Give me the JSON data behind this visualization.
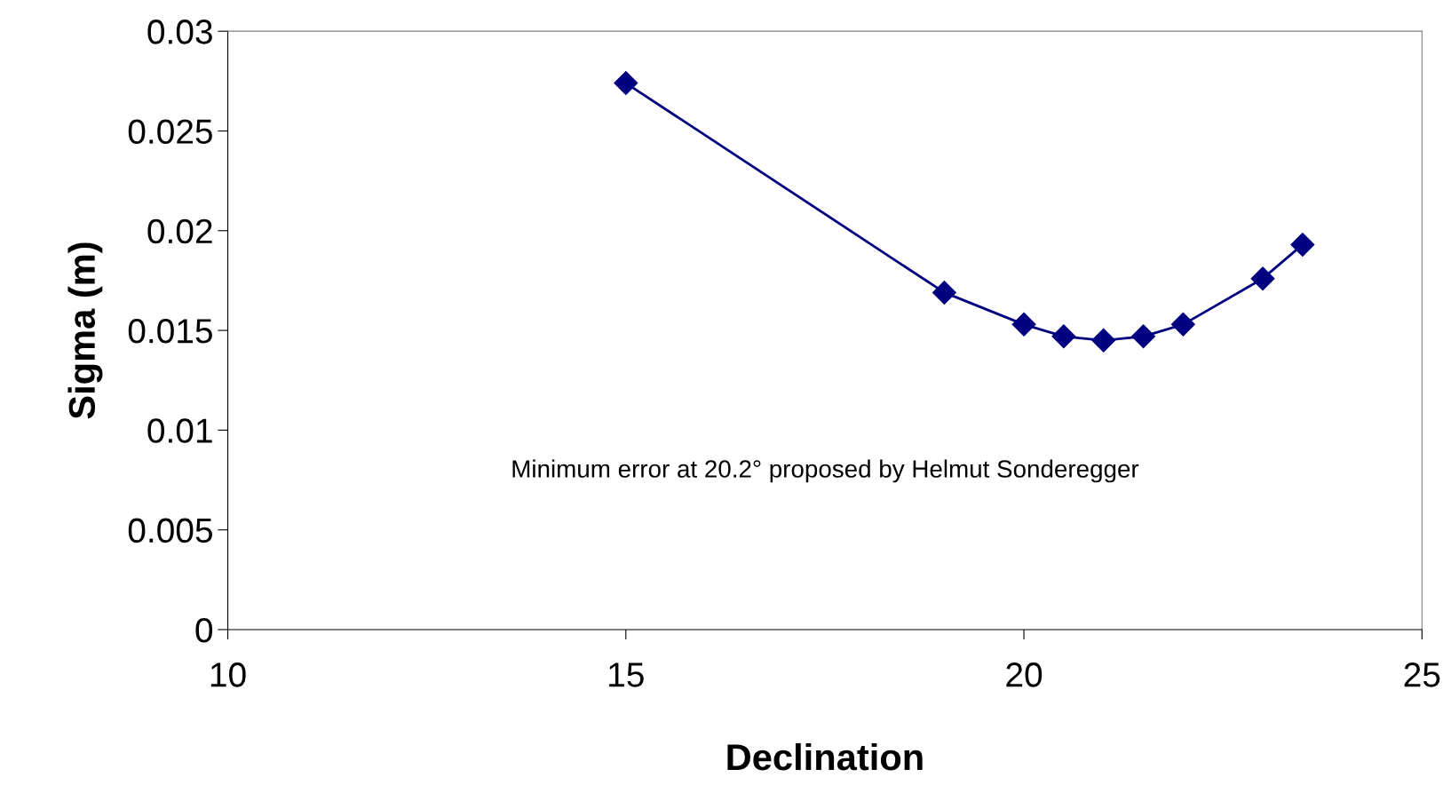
{
  "chart_data": {
    "type": "line",
    "xlabel": "Declination",
    "ylabel": "Sigma (m)",
    "x": [
      15,
      19,
      20,
      20.5,
      21,
      21.5,
      22,
      23,
      23.5
    ],
    "series": [
      {
        "color": "#000080",
        "values": [
          0.0274,
          0.0169,
          0.0153,
          0.0147,
          0.0145,
          0.0147,
          0.0153,
          0.0176,
          0.0193
        ]
      }
    ],
    "xlim": [
      10,
      25
    ],
    "xticks": [
      10,
      15,
      20,
      25
    ],
    "ylim": [
      0,
      0.03
    ],
    "yticks": [
      0,
      0.005,
      0.01,
      0.015,
      0.02,
      0.025,
      0.03
    ],
    "marker": "diamond",
    "line_style": "solid",
    "grid": false,
    "legend": false,
    "annotations": [
      "Minimum error at 20.2° proposed by Helmut Sonderegger"
    ]
  }
}
